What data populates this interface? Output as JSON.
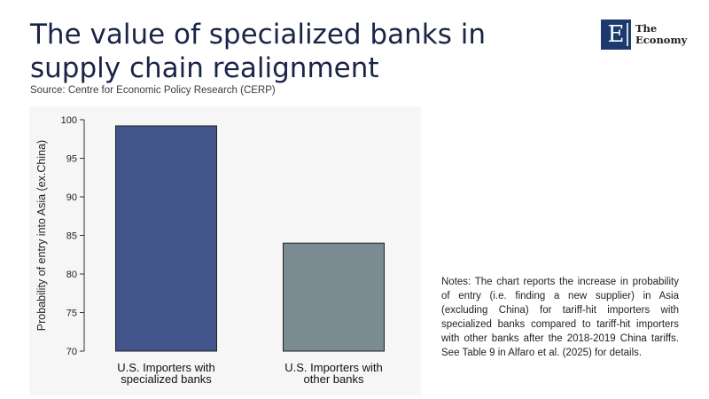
{
  "header": {
    "title": "The value of specialized banks in supply chain realignment",
    "source": "Source: Centre for Economic Policy Research (CERP)"
  },
  "logo": {
    "letter": "E",
    "line1": "The",
    "line2": "Economy",
    "color": "#1d3a6e"
  },
  "notes": "Notes: The chart reports the increase in probability of entry (i.e. finding a new supplier) in Asia (excluding China) for tariff-hit importers with specialized banks compared to tariff-hit importers with other banks after the 2018-2019 China tariffs. See Table 9 in Alfaro et al. (2025) for details.",
  "chart_data": {
    "type": "bar",
    "title": "",
    "xlabel": "",
    "ylabel": "Probability of entry into Asia (ex.China)",
    "categories": [
      [
        "U.S. Importers with",
        "specialized banks"
      ],
      [
        "U.S. Importers with",
        "other banks"
      ]
    ],
    "values": [
      99.2,
      84.0
    ],
    "colors": [
      "#41558a",
      "#7a8b92"
    ],
    "ylim": [
      70,
      100
    ],
    "yticks": [
      70,
      75,
      80,
      85,
      90,
      95,
      100
    ],
    "grid": false,
    "legend": "none"
  }
}
